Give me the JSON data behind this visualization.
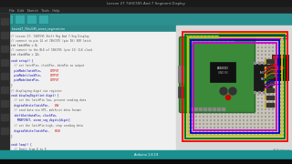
{
  "title": "Lesson 27 74HC595 And 7 Segment Display",
  "bg_color": "#1e1e1e",
  "title_bar_color": "#1a1a1a",
  "title_text_color": "#aaaaaa",
  "menu_bar_color": "#252525",
  "menu_text_color": "#aaaaaa",
  "toolbar_color": "#2d9090",
  "toolbar_btn_color": "#35aaaa",
  "code_bg": "#f0f0f0",
  "sidebar_color": "#2a2a2a",
  "sidebar_icon_color": "#666666",
  "fritzing_bg": "#d8d8d8",
  "arduino_green": "#3a8a3a",
  "arduino_dark": "#2a6a2a",
  "breadboard_color": "#c8c4b8",
  "breadboard_line": "#aaaaaa",
  "ic_color": "#1a1a1a",
  "segment_bg": "#111111",
  "segment_color": "#cc2200",
  "segment_dim": "#330000",
  "wire_colors": [
    "#ff0000",
    "#cc4400",
    "#888800",
    "#007700",
    "#0000cc",
    "#cc00cc"
  ],
  "border_colors": [
    "#ff0000",
    "#007700",
    "#cccc00",
    "#0000cc",
    "#cc00cc"
  ],
  "bottom_bar": "#1a9090",
  "fritzing_text": "#888888",
  "code_text_color": "#222222",
  "code_comment_color": "#555555",
  "code_keyword_color": "#0000aa",
  "code_highlight_color": "#cc0000"
}
